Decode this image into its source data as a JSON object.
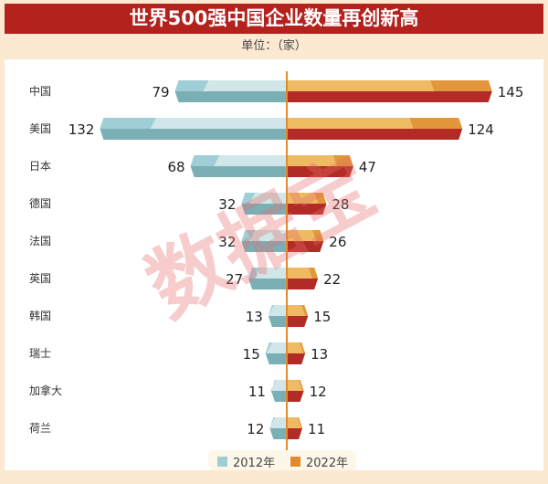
{
  "chart_data": {
    "type": "bar",
    "title": "世界500强中国企业数量再创新高",
    "subtitle": "单位：（家）",
    "categories": [
      "中国",
      "美国",
      "日本",
      "德国",
      "法国",
      "英国",
      "韩国",
      "瑞士",
      "加拿大",
      "荷兰"
    ],
    "series": [
      {
        "name": "2012年",
        "values": [
          79,
          132,
          68,
          32,
          32,
          27,
          13,
          15,
          11,
          12
        ],
        "color": "#9fced6"
      },
      {
        "name": "2022年",
        "values": [
          145,
          124,
          47,
          28,
          26,
          22,
          15,
          13,
          12,
          11
        ],
        "color": "#e38a2e"
      }
    ],
    "layout": "butterfly",
    "legend": "bottom",
    "grid": false
  },
  "watermark": "数据宝"
}
